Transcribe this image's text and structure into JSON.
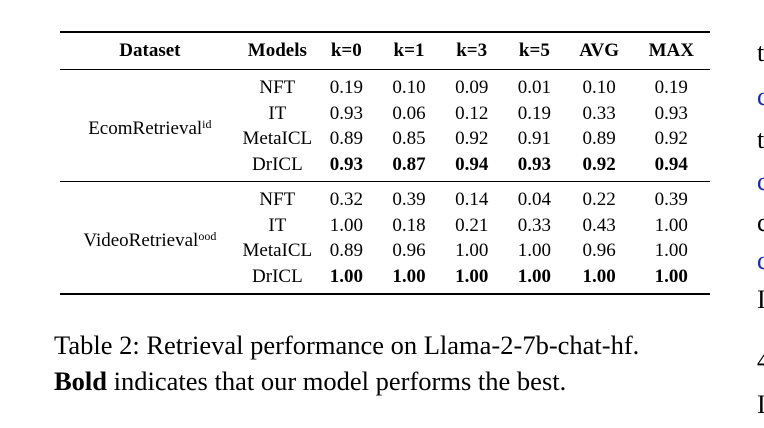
{
  "table": {
    "headers": [
      "Dataset",
      "Models",
      "k=0",
      "k=1",
      "k=3",
      "k=5",
      "AVG",
      "MAX"
    ],
    "groups": [
      {
        "dataset": "EcomRetrieval",
        "dataset_sup": "id",
        "rows": [
          {
            "model": "NFT",
            "values": [
              "0.19",
              "0.10",
              "0.09",
              "0.01",
              "0.10",
              "0.19"
            ],
            "bold": false
          },
          {
            "model": "IT",
            "values": [
              "0.93",
              "0.06",
              "0.12",
              "0.19",
              "0.33",
              "0.93"
            ],
            "bold": false
          },
          {
            "model": "MetaICL",
            "values": [
              "0.89",
              "0.85",
              "0.92",
              "0.91",
              "0.89",
              "0.92"
            ],
            "bold": false
          },
          {
            "model": "DrICL",
            "values": [
              "0.93",
              "0.87",
              "0.94",
              "0.93",
              "0.92",
              "0.94"
            ],
            "bold": true
          }
        ]
      },
      {
        "dataset": "VideoRetrieval",
        "dataset_sup": "ood",
        "rows": [
          {
            "model": "NFT",
            "values": [
              "0.32",
              "0.39",
              "0.14",
              "0.04",
              "0.22",
              "0.39"
            ],
            "bold": false
          },
          {
            "model": "IT",
            "values": [
              "1.00",
              "0.18",
              "0.21",
              "0.33",
              "0.43",
              "1.00"
            ],
            "bold": false
          },
          {
            "model": "MetaICL",
            "values": [
              "0.89",
              "0.96",
              "1.00",
              "1.00",
              "0.96",
              "1.00"
            ],
            "bold": false
          },
          {
            "model": "DrICL",
            "values": [
              "1.00",
              "1.00",
              "1.00",
              "1.00",
              "1.00",
              "1.00"
            ],
            "bold": true
          }
        ]
      }
    ]
  },
  "caption": {
    "label": "Table 2:",
    "text": "Retrieval performance on Llama-2-7b-chat-hf.",
    "bold_word": "Bold",
    "rest": "indicates that our model performs the best."
  },
  "edge_glyphs": [
    "t",
    "c",
    "t",
    "c",
    "c",
    "c",
    "I",
    "4",
    "I"
  ]
}
